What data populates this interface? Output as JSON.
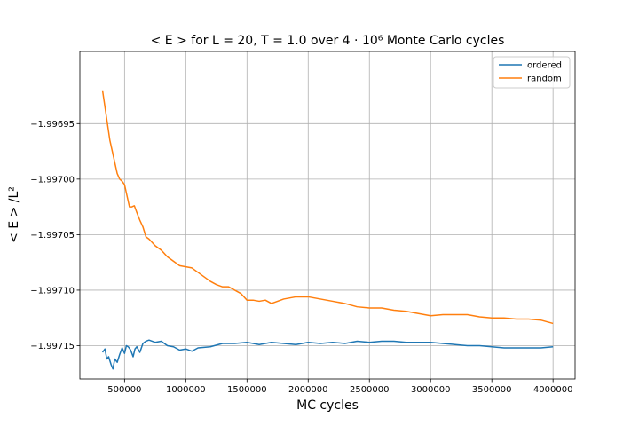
{
  "chart_data": {
    "type": "line",
    "title": "< E >  for L = 20, T = 1.0 over 4 · 10⁶ Monte Carlo cycles",
    "xlabel": "MC cycles",
    "ylabel": "< E > /L²",
    "xlim": [
      135000,
      4180000
    ],
    "ylim": [
      -1.99718,
      -1.996885
    ],
    "x_ticks": [
      500000,
      1000000,
      1500000,
      2000000,
      2500000,
      3000000,
      3500000,
      4000000
    ],
    "x_tick_labels": [
      "500000",
      "1000000",
      "1500000",
      "2000000",
      "2500000",
      "3000000",
      "3500000",
      "4000000"
    ],
    "y_ticks": [
      -1.99695,
      -1.997,
      -1.99705,
      -1.9971,
      -1.99715
    ],
    "y_tick_labels": [
      "−1.99695",
      "−1.99700",
      "−1.99705",
      "−1.99710",
      "−1.99715"
    ],
    "grid": true,
    "legend_position": "top-right",
    "series": [
      {
        "name": "ordered",
        "color": "#1f77b4",
        "points": [
          [
            320000,
            -1.997156
          ],
          [
            340000,
            -1.997153
          ],
          [
            355000,
            -1.997162
          ],
          [
            370000,
            -1.99716
          ],
          [
            390000,
            -1.997167
          ],
          [
            405000,
            -1.997171
          ],
          [
            420000,
            -1.997162
          ],
          [
            440000,
            -1.997165
          ],
          [
            460000,
            -1.997158
          ],
          [
            480000,
            -1.997152
          ],
          [
            500000,
            -1.997157
          ],
          [
            515000,
            -1.99715
          ],
          [
            530000,
            -1.997151
          ],
          [
            550000,
            -1.997154
          ],
          [
            570000,
            -1.99716
          ],
          [
            585000,
            -1.997153
          ],
          [
            600000,
            -1.997151
          ],
          [
            625000,
            -1.997156
          ],
          [
            650000,
            -1.997148
          ],
          [
            675000,
            -1.997146
          ],
          [
            700000,
            -1.997145
          ],
          [
            750000,
            -1.997147
          ],
          [
            800000,
            -1.997146
          ],
          [
            850000,
            -1.99715
          ],
          [
            900000,
            -1.997151
          ],
          [
            950000,
            -1.997154
          ],
          [
            1000000,
            -1.997153
          ],
          [
            1050000,
            -1.997155
          ],
          [
            1100000,
            -1.997152
          ],
          [
            1200000,
            -1.997151
          ],
          [
            1300000,
            -1.997148
          ],
          [
            1400000,
            -1.997148
          ],
          [
            1500000,
            -1.997147
          ],
          [
            1600000,
            -1.997149
          ],
          [
            1700000,
            -1.997147
          ],
          [
            1800000,
            -1.997148
          ],
          [
            1900000,
            -1.997149
          ],
          [
            2000000,
            -1.997147
          ],
          [
            2100000,
            -1.997148
          ],
          [
            2200000,
            -1.997147
          ],
          [
            2300000,
            -1.997148
          ],
          [
            2400000,
            -1.997146
          ],
          [
            2500000,
            -1.997147
          ],
          [
            2600000,
            -1.997146
          ],
          [
            2700000,
            -1.997146
          ],
          [
            2800000,
            -1.997147
          ],
          [
            2900000,
            -1.997147
          ],
          [
            3000000,
            -1.997147
          ],
          [
            3100000,
            -1.997148
          ],
          [
            3200000,
            -1.997149
          ],
          [
            3300000,
            -1.99715
          ],
          [
            3400000,
            -1.99715
          ],
          [
            3500000,
            -1.997151
          ],
          [
            3600000,
            -1.997152
          ],
          [
            3700000,
            -1.997152
          ],
          [
            3800000,
            -1.997152
          ],
          [
            3900000,
            -1.997152
          ],
          [
            4000000,
            -1.997151
          ]
        ]
      },
      {
        "name": "random",
        "color": "#ff7f0e",
        "points": [
          [
            320000,
            -1.99692
          ],
          [
            340000,
            -1.996935
          ],
          [
            360000,
            -1.99695
          ],
          [
            380000,
            -1.996965
          ],
          [
            400000,
            -1.996975
          ],
          [
            420000,
            -1.996985
          ],
          [
            440000,
            -1.996995
          ],
          [
            460000,
            -1.997
          ],
          [
            480000,
            -1.997002
          ],
          [
            500000,
            -1.997005
          ],
          [
            520000,
            -1.997015
          ],
          [
            540000,
            -1.997025
          ],
          [
            560000,
            -1.997025
          ],
          [
            580000,
            -1.997024
          ],
          [
            600000,
            -1.99703
          ],
          [
            625000,
            -1.997037
          ],
          [
            650000,
            -1.997043
          ],
          [
            675000,
            -1.997052
          ],
          [
            700000,
            -1.997054
          ],
          [
            750000,
            -1.99706
          ],
          [
            800000,
            -1.997064
          ],
          [
            850000,
            -1.99707
          ],
          [
            900000,
            -1.997074
          ],
          [
            950000,
            -1.997078
          ],
          [
            1000000,
            -1.997079
          ],
          [
            1050000,
            -1.99708
          ],
          [
            1100000,
            -1.997084
          ],
          [
            1150000,
            -1.997088
          ],
          [
            1200000,
            -1.997092
          ],
          [
            1250000,
            -1.997095
          ],
          [
            1300000,
            -1.997097
          ],
          [
            1350000,
            -1.997097
          ],
          [
            1400000,
            -1.9971
          ],
          [
            1450000,
            -1.997103
          ],
          [
            1500000,
            -1.997109
          ],
          [
            1550000,
            -1.997109
          ],
          [
            1600000,
            -1.99711
          ],
          [
            1650000,
            -1.997109
          ],
          [
            1700000,
            -1.997112
          ],
          [
            1750000,
            -1.99711
          ],
          [
            1800000,
            -1.997108
          ],
          [
            1850000,
            -1.997107
          ],
          [
            1900000,
            -1.997106
          ],
          [
            1950000,
            -1.997106
          ],
          [
            2000000,
            -1.997106
          ],
          [
            2100000,
            -1.997108
          ],
          [
            2200000,
            -1.99711
          ],
          [
            2300000,
            -1.997112
          ],
          [
            2400000,
            -1.997115
          ],
          [
            2500000,
            -1.997116
          ],
          [
            2600000,
            -1.997116
          ],
          [
            2700000,
            -1.997118
          ],
          [
            2800000,
            -1.997119
          ],
          [
            2900000,
            -1.997121
          ],
          [
            3000000,
            -1.997123
          ],
          [
            3100000,
            -1.997122
          ],
          [
            3200000,
            -1.997122
          ],
          [
            3300000,
            -1.997122
          ],
          [
            3400000,
            -1.997124
          ],
          [
            3500000,
            -1.997125
          ],
          [
            3600000,
            -1.997125
          ],
          [
            3700000,
            -1.997126
          ],
          [
            3800000,
            -1.997126
          ],
          [
            3900000,
            -1.997127
          ],
          [
            4000000,
            -1.99713
          ]
        ]
      }
    ]
  }
}
